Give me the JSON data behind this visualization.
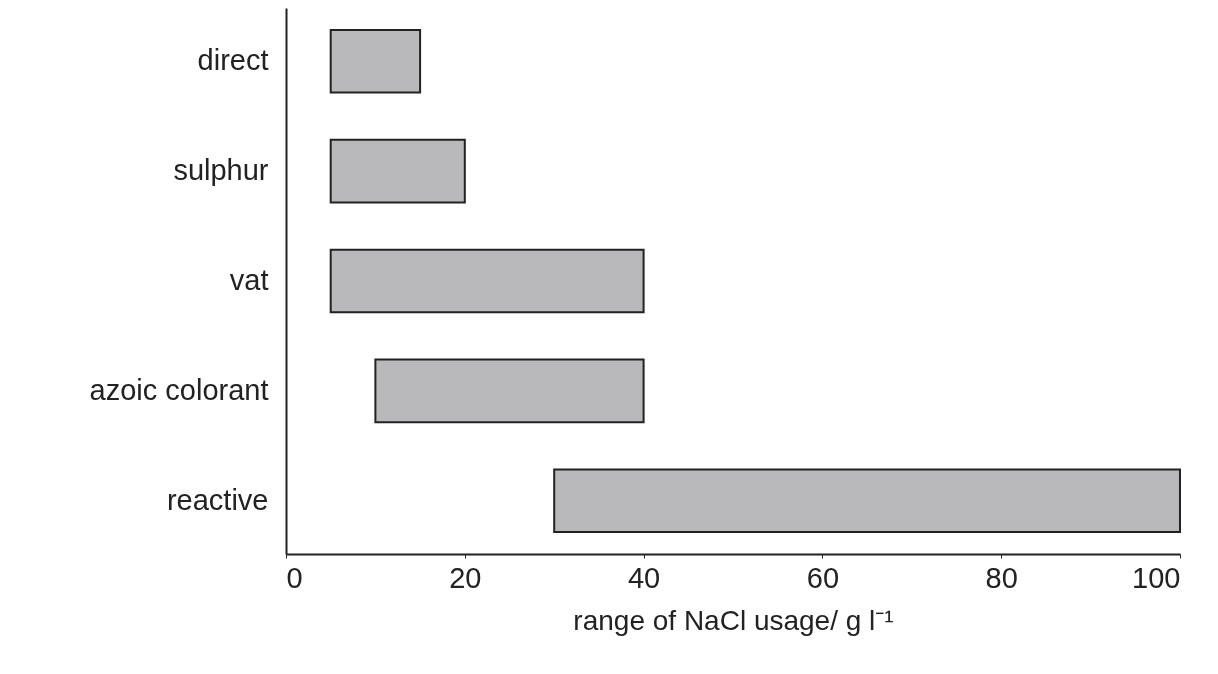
{
  "chart_data": {
    "type": "bar",
    "orientation": "horizontal",
    "xlabel": "range of NaCl usage/ g l⁻¹",
    "categories": [
      "direct",
      "sulphur",
      "vat",
      "azoic colorant",
      "reactive"
    ],
    "base": [
      5,
      5,
      5,
      10,
      30
    ],
    "values": [
      10,
      15,
      35,
      30,
      70
    ],
    "color": "#b9b9bb",
    "xlim": [
      0,
      100
    ],
    "xticks": [
      0,
      20,
      40,
      60,
      80,
      100
    ],
    "grid": false
  }
}
